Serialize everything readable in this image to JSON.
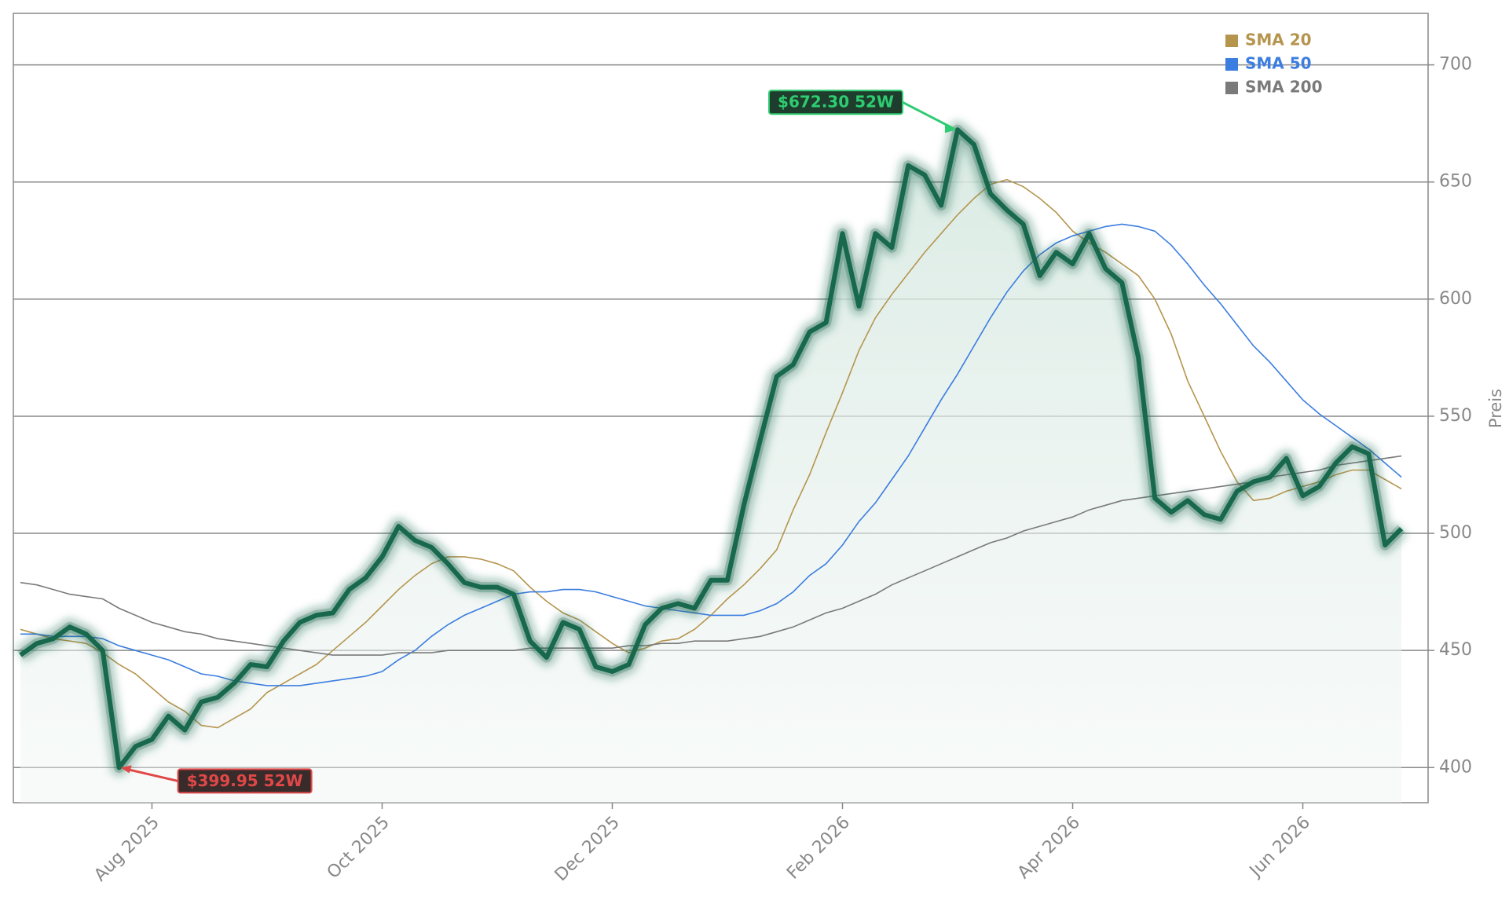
{
  "chart_data": {
    "type": "line",
    "categories": [
      null,
      null,
      null,
      null,
      null,
      null,
      null,
      null,
      "Aug 2025",
      null,
      null,
      null,
      null,
      null,
      null,
      null,
      null,
      null,
      null,
      null,
      null,
      null,
      "Oct 2025",
      null,
      null,
      null,
      null,
      null,
      null,
      null,
      null,
      null,
      null,
      null,
      null,
      null,
      "Dec 2025",
      null,
      null,
      null,
      null,
      null,
      null,
      null,
      null,
      null,
      null,
      null,
      null,
      null,
      "Feb 2026",
      null,
      null,
      null,
      null,
      null,
      null,
      null,
      null,
      null,
      null,
      null,
      null,
      null,
      "Apr 2026",
      null,
      null,
      null,
      null,
      null,
      null,
      null,
      null,
      null,
      null,
      null,
      null,
      null,
      "Jun 2026",
      null,
      null,
      null,
      null,
      null,
      null
    ],
    "ylim": [
      385,
      722
    ],
    "yticks": [
      400,
      450,
      500,
      550,
      600,
      650,
      700
    ],
    "y_label": "Preis",
    "grid": true,
    "legend": "upper right",
    "series": [
      {
        "color": "#17684c",
        "values": [
          448,
          453,
          455,
          460,
          457,
          450,
          399.95,
          409,
          412,
          422,
          416,
          428,
          430,
          436,
          444,
          443,
          454,
          462,
          465,
          466,
          476,
          481,
          490,
          503,
          497,
          494,
          487,
          479,
          477,
          477,
          474,
          454,
          447,
          462,
          459,
          443,
          441,
          444,
          461,
          468,
          470,
          468,
          480,
          480,
          512,
          540,
          567,
          572,
          586,
          590,
          628,
          597,
          628,
          622,
          657,
          653,
          640,
          672.3,
          666,
          645,
          638,
          632,
          610,
          620,
          615,
          628,
          613,
          607,
          575,
          515,
          509,
          514,
          508,
          506,
          518,
          522,
          524,
          532,
          516,
          520,
          530,
          537,
          534,
          495,
          502
        ]
      },
      {
        "name": "SMA 20",
        "color": "#b5954e",
        "values": [
          459,
          457,
          455,
          454,
          453,
          449,
          444,
          440,
          434,
          428,
          424,
          418,
          417,
          421,
          425,
          432,
          436,
          440,
          444,
          450,
          456,
          462,
          469,
          476,
          482,
          487,
          490,
          490,
          489,
          487,
          484,
          477,
          471,
          466,
          463,
          458,
          453,
          449,
          451,
          454,
          455,
          459,
          465,
          472,
          478,
          485,
          493,
          510,
          525,
          543,
          560,
          578,
          592,
          602,
          611,
          620,
          628,
          636,
          643,
          649,
          651,
          648,
          643,
          637,
          629,
          624,
          620,
          615,
          610,
          600,
          585,
          565,
          550,
          535,
          522,
          514,
          515,
          518,
          520,
          522,
          525,
          527,
          527,
          523,
          519
        ]
      },
      {
        "name": "SMA 50",
        "color": "#3b7de0",
        "values": [
          457,
          457,
          456,
          456,
          456,
          455,
          452,
          450,
          448,
          446,
          443,
          440,
          439,
          437,
          436,
          435,
          435,
          435,
          436,
          437,
          438,
          439,
          441,
          446,
          450,
          456,
          461,
          465,
          468,
          471,
          474,
          475,
          475,
          476,
          476,
          475,
          473,
          471,
          469,
          468,
          467,
          466,
          465,
          465,
          465,
          467,
          470,
          475,
          482,
          487,
          495,
          505,
          513,
          523,
          533,
          545,
          557,
          568,
          580,
          592,
          603,
          612,
          619,
          624,
          627,
          629,
          631,
          632,
          631,
          629,
          623,
          615,
          606,
          598,
          589,
          580,
          573,
          565,
          557,
          551,
          546,
          541,
          536,
          530,
          524
        ]
      },
      {
        "name": "SMA 200",
        "color": "#7a7a7a",
        "values": [
          479,
          478,
          476,
          474,
          473,
          472,
          468,
          465,
          462,
          460,
          458,
          457,
          455,
          454,
          453,
          452,
          451,
          450,
          449,
          448,
          448,
          448,
          448,
          449,
          449,
          449,
          450,
          450,
          450,
          450,
          450,
          451,
          451,
          451,
          451,
          451,
          451,
          452,
          452,
          453,
          453,
          454,
          454,
          454,
          455,
          456,
          458,
          460,
          463,
          466,
          468,
          471,
          474,
          478,
          481,
          484,
          487,
          490,
          493,
          496,
          498,
          501,
          503,
          505,
          507,
          510,
          512,
          514,
          515,
          516,
          517,
          518,
          519,
          520,
          521,
          522,
          524,
          525,
          526,
          527,
          529,
          530,
          531,
          532,
          533
        ]
      }
    ],
    "annotations": [
      {
        "text": "$672.30 52W",
        "color": "#2ecc71"
      },
      {
        "text": "$399.95 52W",
        "color": "#e04848"
      }
    ]
  }
}
